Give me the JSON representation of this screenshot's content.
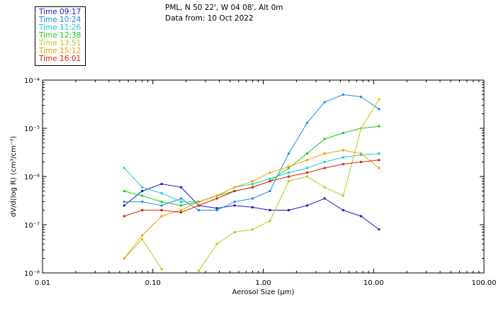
{
  "header": {
    "location": "PML, N 50 22', W 04 08', Alt 0m",
    "data_from": "Data from: 10 Oct 2022"
  },
  "legend": [
    {
      "label": "Time 09:17",
      "color": "#1a1acc"
    },
    {
      "label": "Time 10:24",
      "color": "#1a8ae6"
    },
    {
      "label": "Time 11:26",
      "color": "#1acccc"
    },
    {
      "label": "Time 12:38",
      "color": "#1acc1a"
    },
    {
      "label": "Time 13:51",
      "color": "#b3cc1a"
    },
    {
      "label": "Time 15:12",
      "color": "#f0a000"
    },
    {
      "label": "Time 16:01",
      "color": "#e02000"
    }
  ],
  "chart_data": {
    "type": "line",
    "title": "PML, N 50 22', W 04 08', Alt 0m",
    "xlabel": "Aerosol Size (µm)",
    "ylabel": "dV/d(log R) (cm³/cm⁻³)",
    "xscale": "log",
    "yscale": "log",
    "xlim": [
      0.01,
      100
    ],
    "ylim": [
      1e-08,
      0.0001
    ],
    "xticks": [
      "0.01",
      "0.10",
      "1.00",
      "10.00",
      "100.00"
    ],
    "yticks": [
      "10⁻⁸",
      "10⁻⁷",
      "10⁻⁶",
      "10⁻⁵",
      "10⁻⁴"
    ],
    "x": [
      0.055,
      0.08,
      0.12,
      0.18,
      0.26,
      0.38,
      0.55,
      0.8,
      1.15,
      1.7,
      2.5,
      3.6,
      5.3,
      7.7,
      11.2
    ],
    "series": [
      {
        "name": "Time 09:17",
        "color": "#1a1acc",
        "values": [
          2.5e-07,
          5e-07,
          7e-07,
          6e-07,
          2.5e-07,
          2.2e-07,
          2.5e-07,
          2.3e-07,
          2e-07,
          2e-07,
          2.5e-07,
          3.5e-07,
          2e-07,
          1.5e-07,
          8e-08
        ]
      },
      {
        "name": "Time 10:24",
        "color": "#1a8ae6",
        "values": [
          3e-07,
          3e-07,
          2.5e-07,
          3.5e-07,
          2e-07,
          2e-07,
          3e-07,
          3.5e-07,
          5e-07,
          3e-06,
          1.3e-05,
          3.5e-05,
          5e-05,
          4.5e-05,
          2.5e-05
        ]
      },
      {
        "name": "Time 11:26",
        "color": "#1acccc",
        "values": [
          1.5e-06,
          6e-07,
          4.5e-07,
          3e-07,
          3e-07,
          4e-07,
          6e-07,
          7e-07,
          9e-07,
          1.2e-06,
          1.5e-06,
          2e-06,
          2.5e-06,
          2.8e-06,
          3e-06
        ]
      },
      {
        "name": "Time 12:38",
        "color": "#1acc1a",
        "values": [
          5e-07,
          4e-07,
          3e-07,
          2.5e-07,
          3e-07,
          4e-07,
          5e-07,
          6e-07,
          8e-07,
          1.5e-06,
          3e-06,
          6e-06,
          8e-06,
          1e-05,
          1.1e-05
        ]
      },
      {
        "name": "Time 13:51",
        "color": "#b3cc1a",
        "values": [
          2e-08,
          5e-08,
          1.2e-08,
          null,
          1.1e-08,
          4e-08,
          7e-08,
          8e-08,
          1.2e-07,
          8e-07,
          1e-06,
          6e-07,
          4e-07,
          1e-05,
          4e-05
        ]
      },
      {
        "name": "Time 15:12",
        "color": "#f0a000",
        "values": [
          2e-08,
          6e-08,
          1.5e-07,
          2e-07,
          3e-07,
          4e-07,
          6e-07,
          8e-07,
          1.2e-06,
          1.6e-06,
          2.2e-06,
          3e-06,
          3.5e-06,
          3e-06,
          1.5e-06
        ]
      },
      {
        "name": "Time 16:01",
        "color": "#e02000",
        "values": [
          1.5e-07,
          2e-07,
          2e-07,
          1.8e-07,
          2.5e-07,
          3.5e-07,
          5e-07,
          6e-07,
          8e-07,
          1e-06,
          1.2e-06,
          1.5e-06,
          1.8e-06,
          2e-06,
          2.2e-06
        ]
      }
    ]
  }
}
